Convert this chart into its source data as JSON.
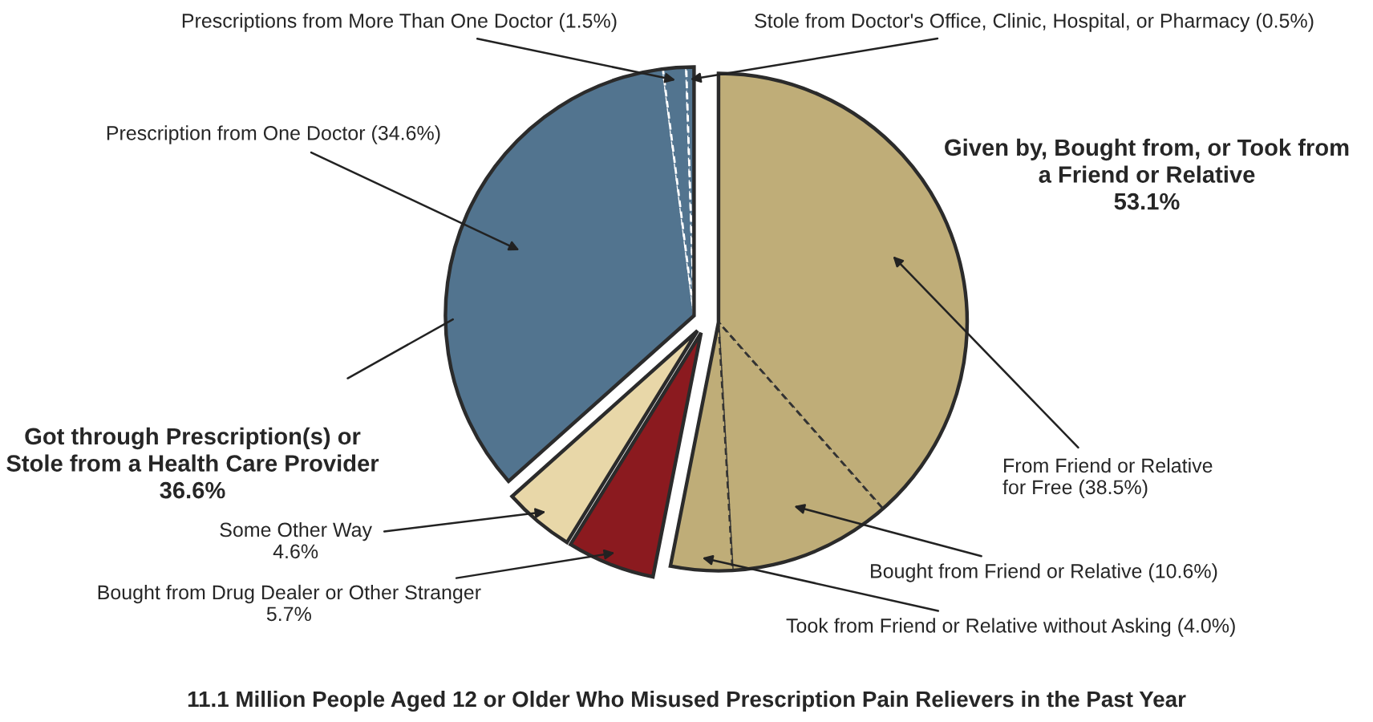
{
  "chart_data": {
    "type": "pie",
    "title": "11.1 Million People Aged 12 or Older Who Misused Prescription Pain Relievers in the Past Year",
    "categories": [
      "From Friend or Relative\nfor Free (38.5%)",
      "Bought from Friend or Relative (10.6%)",
      "Took from Friend or Relative without Asking (4.0%)",
      "Bought from Drug Dealer or Other Stranger\n5.7%",
      "Some Other Way\n4.6%",
      "Prescription from One Doctor (34.6%)",
      "Prescriptions from More Than One Doctor (1.5%)",
      "Stole from Doctor's Office, Clinic, Hospital, or Pharmacy (0.5%)"
    ],
    "values": [
      38.5,
      10.6,
      4.0,
      5.7,
      4.6,
      34.6,
      1.5,
      0.5
    ],
    "colors": [
      "#bfad78",
      "#bfad78",
      "#bfad78",
      "#8b1a1f",
      "#e8d7a8",
      "#52748f",
      "#52748f",
      "#52748f"
    ],
    "annotations": [
      "Given by, Bought from, or Took from\na Friend or Relative\n53.1%",
      "Got through Prescription(s) or\nStole from a Health Care Provider\n36.6%"
    ],
    "legend": false
  }
}
